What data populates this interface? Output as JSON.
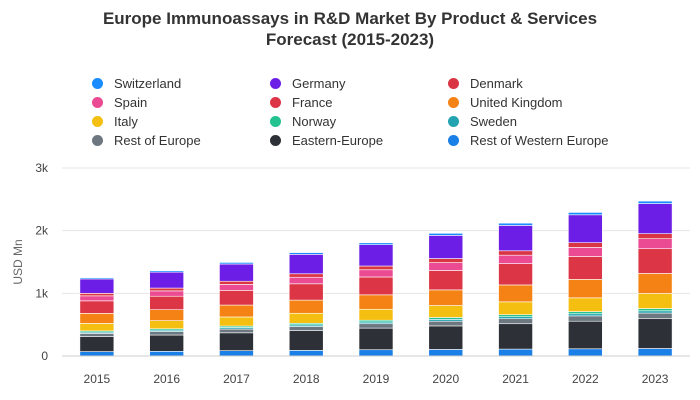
{
  "chart_data": {
    "type": "bar",
    "stacked": true,
    "title": "Europe Immunoassays in R&D Market By Product & Services Forecast (2015-2023)",
    "title_lines": [
      "Europe Immunoassays in R&D Market By Product & Services",
      "Forecast (2015-2023)"
    ],
    "xlabel": "",
    "ylabel": "USD Mn",
    "ylim": [
      0,
      3000
    ],
    "y_ticks": [
      0,
      1000,
      2000,
      3000
    ],
    "y_tick_labels": [
      "0",
      "1k",
      "2k",
      "3k"
    ],
    "grid": "horizontal",
    "legend_position": "top",
    "categories": [
      "2015",
      "2016",
      "2017",
      "2018",
      "2019",
      "2020",
      "2021",
      "2022",
      "2023"
    ],
    "series": [
      {
        "name": "Rest of Western Europe",
        "color": "#1a7fe6",
        "values": [
          70,
          75,
          85,
          90,
          100,
          105,
          110,
          115,
          120
        ]
      },
      {
        "name": "Eastern-Europe",
        "color": "#2d3036",
        "values": [
          240,
          260,
          285,
          315,
          345,
          375,
          405,
          440,
          475
        ]
      },
      {
        "name": "Rest of Europe",
        "color": "#6c7780",
        "values": [
          50,
          55,
          60,
          65,
          70,
          75,
          80,
          85,
          90
        ]
      },
      {
        "name": "Sweden",
        "color": "#22a3b0",
        "values": [
          20,
          22,
          24,
          26,
          28,
          30,
          32,
          34,
          36
        ]
      },
      {
        "name": "Norway",
        "color": "#24c28e",
        "values": [
          20,
          22,
          24,
          26,
          28,
          30,
          32,
          34,
          36
        ]
      },
      {
        "name": "Italy",
        "color": "#f5bf12",
        "values": [
          120,
          130,
          145,
          160,
          175,
          190,
          205,
          220,
          240
        ]
      },
      {
        "name": "United Kingdom",
        "color": "#f58214",
        "values": [
          160,
          175,
          190,
          210,
          230,
          250,
          270,
          295,
          320
        ]
      },
      {
        "name": "France",
        "color": "#dc3545",
        "values": [
          200,
          215,
          235,
          260,
          285,
          310,
          340,
          365,
          395
        ]
      },
      {
        "name": "Spain",
        "color": "#eb4b92",
        "values": [
          80,
          85,
          95,
          105,
          115,
          125,
          135,
          145,
          160
        ]
      },
      {
        "name": "Denmark",
        "color": "#da3543",
        "values": [
          40,
          45,
          50,
          55,
          60,
          65,
          70,
          75,
          80
        ]
      },
      {
        "name": "Germany",
        "color": "#6d1ee6",
        "values": [
          230,
          255,
          275,
          310,
          340,
          370,
          405,
          445,
          480
        ]
      },
      {
        "name": "Switzerland",
        "color": "#1a8cff",
        "values": [
          20,
          22,
          25,
          28,
          30,
          33,
          36,
          38,
          40
        ]
      }
    ]
  },
  "legend_rows": [
    [
      {
        "name": "Switzerland",
        "color": "#1a8cff"
      },
      {
        "name": "Germany",
        "color": "#6d1ee6"
      },
      {
        "name": "Denmark",
        "color": "#da3543"
      }
    ],
    [
      {
        "name": "Spain",
        "color": "#eb4b92"
      },
      {
        "name": "France",
        "color": "#dc3545"
      },
      {
        "name": "United Kingdom",
        "color": "#f58214"
      }
    ],
    [
      {
        "name": "Italy",
        "color": "#f5bf12"
      },
      {
        "name": "Norway",
        "color": "#24c28e"
      },
      {
        "name": "Sweden",
        "color": "#22a3b0"
      }
    ],
    [
      {
        "name": "Rest of Europe",
        "color": "#6c7780"
      },
      {
        "name": "Eastern-Europe",
        "color": "#2d3036"
      },
      {
        "name": "Rest of Western Europe",
        "color": "#1a7fe6"
      }
    ]
  ]
}
